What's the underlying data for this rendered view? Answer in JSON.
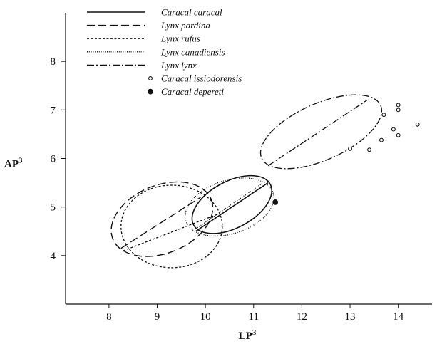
{
  "chart_data": {
    "type": "scatter",
    "xlabel": "LP",
    "xlabel_sup": "3",
    "ylabel": "AP",
    "ylabel_sup": "3",
    "xlim": [
      7.1,
      14.7
    ],
    "ylim": [
      3.0,
      9.0
    ],
    "x_ticks": [
      8,
      9,
      10,
      11,
      12,
      13,
      14
    ],
    "y_ticks": [
      4,
      5,
      6,
      7,
      8
    ],
    "grid": false,
    "legend_position": "top-left",
    "legend": [
      {
        "name": "Caracal caracal",
        "style": "solid"
      },
      {
        "name": "Lynx pardina",
        "style": "dashed"
      },
      {
        "name": "Lynx rufus",
        "style": "short-dashed"
      },
      {
        "name": "Lynx canadiensis",
        "style": "dotted"
      },
      {
        "name": "Lynx lynx",
        "style": "dash-dot"
      },
      {
        "name": "Caracal issiodorensis",
        "style": "open-circle"
      },
      {
        "name": "Caracal depereti",
        "style": "filled-circle"
      }
    ],
    "ellipses": [
      {
        "series": "Lynx rufus",
        "cx": 9.3,
        "cy": 4.6,
        "rx": 1.05,
        "ry": 0.85,
        "rotation_deg": 0,
        "style": "short-dashed"
      },
      {
        "series": "Lynx pardina",
        "cx": 9.1,
        "cy": 4.75,
        "rx": 1.1,
        "ry": 0.7,
        "rotation_deg": 22,
        "style": "dashed"
      },
      {
        "series": "Lynx canadiensis",
        "cx": 10.5,
        "cy": 5.0,
        "rx": 0.95,
        "ry": 0.55,
        "rotation_deg": 18,
        "style": "dotted"
      },
      {
        "series": "Caracal caracal",
        "cx": 10.55,
        "cy": 5.05,
        "rx": 0.9,
        "ry": 0.48,
        "rotation_deg": 28,
        "style": "solid"
      },
      {
        "series": "Lynx lynx",
        "cx": 12.4,
        "cy": 6.55,
        "rx": 1.35,
        "ry": 0.58,
        "rotation_deg": 24,
        "style": "dash-dot"
      }
    ],
    "regression_lines": [
      {
        "series": "Lynx pardina",
        "x1": 8.25,
        "y1": 4.15,
        "x2": 9.9,
        "y2": 5.2,
        "style": "dashed"
      },
      {
        "series": "Lynx rufus",
        "x1": 8.3,
        "y1": 4.1,
        "x2": 10.25,
        "y2": 4.85,
        "style": "short-dashed"
      },
      {
        "series": "Lynx canadiensis",
        "x1": 9.8,
        "y1": 4.55,
        "x2": 11.2,
        "y2": 5.5,
        "style": "dotted"
      },
      {
        "series": "Caracal caracal",
        "x1": 9.8,
        "y1": 4.5,
        "x2": 11.3,
        "y2": 5.5,
        "style": "solid"
      },
      {
        "series": "Lynx lynx",
        "x1": 11.3,
        "y1": 5.85,
        "x2": 13.35,
        "y2": 7.2,
        "style": "dash-dot"
      }
    ],
    "points": [
      {
        "series": "Caracal issiodorensis",
        "x": 13.0,
        "y": 6.2,
        "filled": false
      },
      {
        "series": "Caracal issiodorensis",
        "x": 13.4,
        "y": 6.18,
        "filled": false
      },
      {
        "series": "Caracal issiodorensis",
        "x": 13.65,
        "y": 6.38,
        "filled": false
      },
      {
        "series": "Caracal issiodorensis",
        "x": 13.7,
        "y": 6.9,
        "filled": false
      },
      {
        "series": "Caracal issiodorensis",
        "x": 13.9,
        "y": 6.6,
        "filled": false
      },
      {
        "series": "Caracal issiodorensis",
        "x": 14.0,
        "y": 6.48,
        "filled": false
      },
      {
        "series": "Caracal issiodorensis",
        "x": 14.0,
        "y": 7.0,
        "filled": false
      },
      {
        "series": "Caracal issiodorensis",
        "x": 14.0,
        "y": 7.1,
        "filled": false
      },
      {
        "series": "Caracal issiodorensis",
        "x": 14.4,
        "y": 6.7,
        "filled": false
      },
      {
        "series": "Caracal depereti",
        "x": 11.45,
        "y": 5.1,
        "filled": true
      }
    ]
  }
}
